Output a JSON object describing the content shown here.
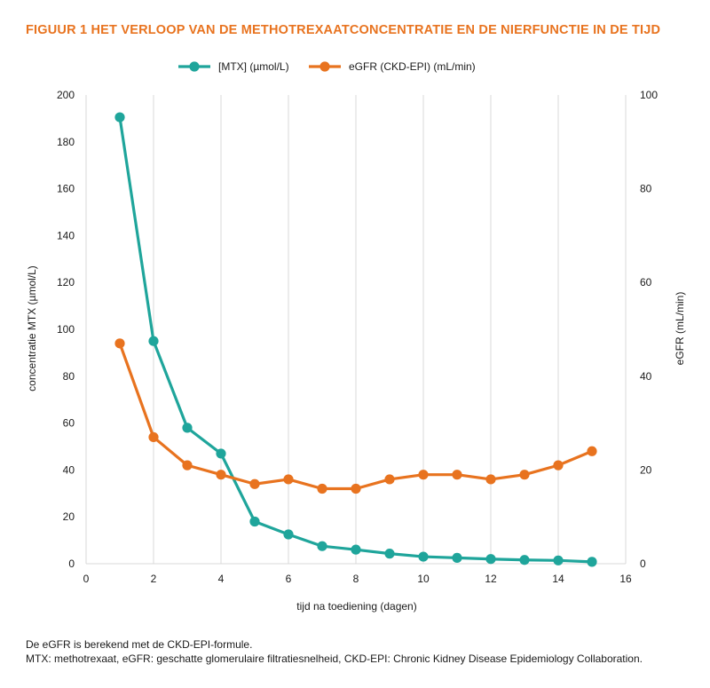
{
  "title": "FIGUUR 1  HET VERLOOP VAN DE METHOTREXAATCONCENTRATIE EN DE NIERFUNCTIE IN DE TIJD",
  "colors": {
    "title": "#e8731f",
    "mtx": "#1fa59b",
    "egfr": "#e8731f",
    "grid": "#d9d9d9"
  },
  "footnotes": [
    "De eGFR is berekend met de CKD-EPI-formule.",
    "MTX: methotrexaat, eGFR: geschatte glomerulaire filtratiesnelheid, CKD-EPI: Chronic Kidney Disease Epidemiology Collaboration."
  ],
  "chart_data": {
    "type": "line",
    "title": "",
    "xlabel": "tijd na toediening (dagen)",
    "ylabel": "concentratie MTX (µmol/L)",
    "y2label": "eGFR (mL/min)",
    "xlim": [
      0,
      16
    ],
    "ylim": [
      0,
      200
    ],
    "y2lim": [
      0,
      100
    ],
    "xticks": [
      0,
      2,
      4,
      6,
      8,
      10,
      12,
      14,
      16
    ],
    "yticks": [
      0,
      20,
      40,
      60,
      80,
      100,
      120,
      140,
      160,
      180,
      200
    ],
    "y2ticks": [
      0,
      20,
      40,
      60,
      80,
      100
    ],
    "grid": "vertical",
    "legend_position": "top-center",
    "series": [
      {
        "name": "[MTX] (µmol/L)",
        "axis": "left",
        "color": "#1fa59b",
        "x": [
          1,
          2,
          3,
          4,
          5,
          6,
          7,
          8,
          9,
          10,
          11,
          12,
          13,
          14,
          15
        ],
        "values": [
          190.5,
          95,
          58,
          47,
          18,
          12.5,
          7.5,
          6,
          4.3,
          3,
          2.5,
          2,
          1.6,
          1.4,
          0.8
        ]
      },
      {
        "name": "eGFR (CKD-EPI) (mL/min)",
        "axis": "right",
        "color": "#e8731f",
        "x": [
          1,
          2,
          3,
          4,
          5,
          6,
          7,
          8,
          9,
          10,
          11,
          12,
          13,
          14,
          15
        ],
        "values": [
          47,
          27,
          21,
          19,
          17,
          18,
          16,
          16,
          18,
          19,
          19,
          18,
          19,
          21,
          24
        ]
      }
    ]
  }
}
